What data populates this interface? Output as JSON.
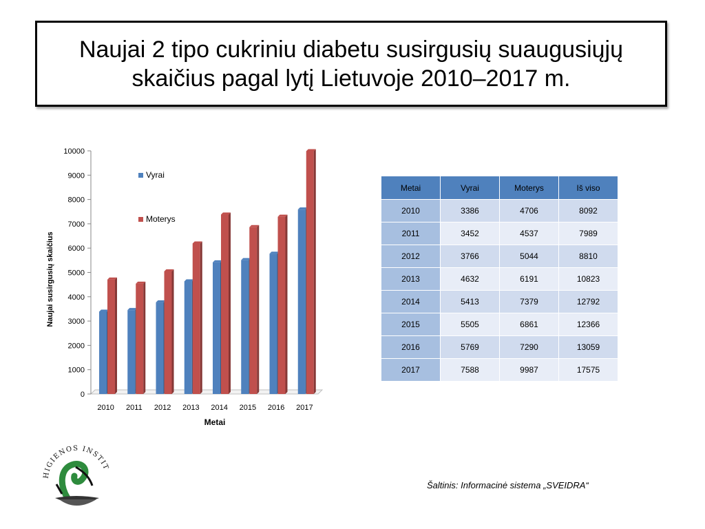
{
  "title": "Naujai 2 tipo cukriniu diabetu susirgusių suaugusiųjų skaičius pagal lytį Lietuvoje 2010–2017 m.",
  "chart_data": {
    "type": "bar",
    "categories": [
      "2010",
      "2011",
      "2012",
      "2013",
      "2014",
      "2015",
      "2016",
      "2017"
    ],
    "series": [
      {
        "name": "Vyrai",
        "color": "#4f81bd",
        "values": [
          3386,
          3452,
          3766,
          4632,
          5413,
          5505,
          5769,
          7588
        ]
      },
      {
        "name": "Moterys",
        "color": "#c0504d",
        "values": [
          4706,
          4537,
          5044,
          6191,
          7379,
          6861,
          7290,
          9987
        ]
      }
    ],
    "xlabel": "Metai",
    "ylabel": "Naujai susirgusių skaičius",
    "ylim": [
      0,
      10000
    ],
    "yticks": [
      "0",
      "1000",
      "2000",
      "3000",
      "4000",
      "5000",
      "6000",
      "7000",
      "8000",
      "9000",
      "10000"
    ],
    "grid": false,
    "legend_position": "top-left inside plot"
  },
  "table": {
    "headers": [
      "Metai",
      "Vyrai",
      "Moterys",
      "Iš viso"
    ],
    "rows": [
      [
        "2010",
        "3386",
        "4706",
        "8092"
      ],
      [
        "2011",
        "3452",
        "4537",
        "7989"
      ],
      [
        "2012",
        "3766",
        "5044",
        "8810"
      ],
      [
        "2013",
        "4632",
        "6191",
        "10823"
      ],
      [
        "2014",
        "5413",
        "7379",
        "12792"
      ],
      [
        "2015",
        "5505",
        "6861",
        "12366"
      ],
      [
        "2016",
        "5769",
        "7290",
        "13059"
      ],
      [
        "2017",
        "7588",
        "9987",
        "17575"
      ]
    ]
  },
  "source": "Šaltinis: Informacinė sistema „SVEIDRA“",
  "logo": {
    "text": "HIGIENOS INSTITUTAS",
    "icon": "higienos-institutas-logo-icon"
  }
}
